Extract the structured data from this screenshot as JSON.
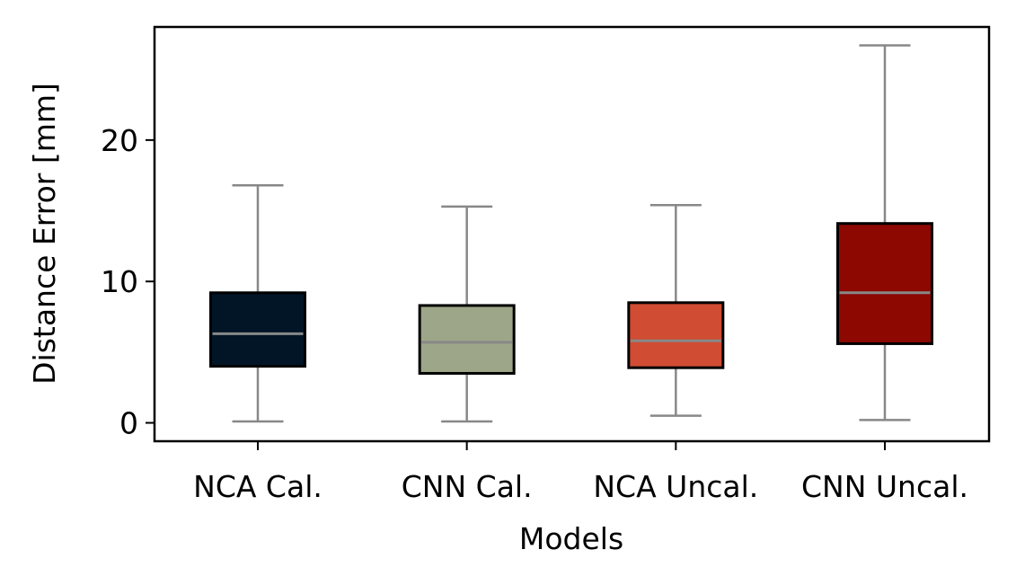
{
  "chart_data": {
    "type": "box",
    "title": "",
    "xlabel": "Models",
    "ylabel": "Distance Error [mm]",
    "ylim": [
      -1.3,
      28
    ],
    "yticks": [
      0,
      10,
      20
    ],
    "grid": false,
    "legend": "none",
    "whisker_color": "#888888",
    "median_color": "#888888",
    "series": [
      {
        "name": "NCA Cal.",
        "color": "#021526",
        "whislo": 0.1,
        "q1": 4.0,
        "median": 6.3,
        "q3": 9.2,
        "whishi": 16.8
      },
      {
        "name": "CNN Cal.",
        "color": "#9DA688",
        "whislo": 0.1,
        "q1": 3.5,
        "median": 5.7,
        "q3": 8.3,
        "whishi": 15.3
      },
      {
        "name": "NCA Uncal.",
        "color": "#D04C33",
        "whislo": 0.5,
        "q1": 3.9,
        "median": 5.8,
        "q3": 8.5,
        "whishi": 15.4
      },
      {
        "name": "CNN Uncal.",
        "color": "#8C0801",
        "whislo": 0.2,
        "q1": 5.6,
        "median": 9.2,
        "q3": 14.1,
        "whishi": 26.7
      }
    ]
  }
}
